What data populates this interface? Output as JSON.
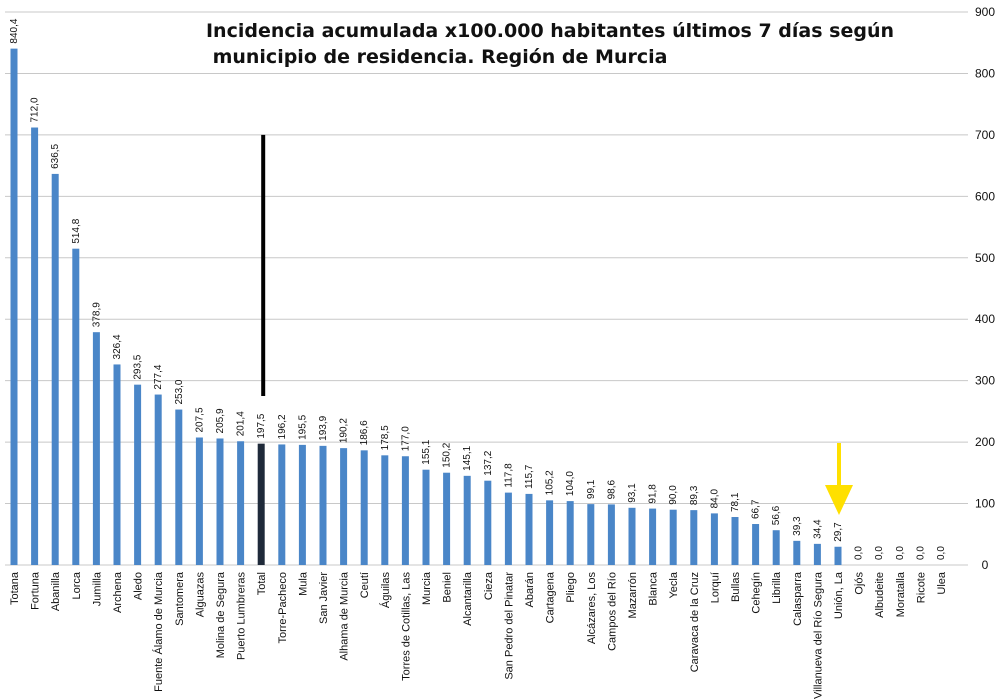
{
  "chart_data": {
    "type": "bar",
    "title_line1": "Incidencia acumulada x100.000 habitantes últimos 7 días según",
    "title_line2": "municipio  de residencia. Región de Murcia",
    "categories": [
      "Totana",
      "Fortuna",
      "Abanilla",
      "Lorca",
      "Jumilla",
      "Archena",
      "Aledo",
      "Fuente Álamo de Murcia",
      "Santomera",
      "Alguazas",
      "Molina de Segura",
      "Puerto Lumbreras",
      "Total",
      "Torre-Pacheco",
      "Mula",
      "San Javier",
      "Alhama de Murcia",
      "Ceutí",
      "Águilas",
      "Torres de Cotillas, Las",
      "Murcia",
      "Beniel",
      "Alcantarilla",
      "Cieza",
      "San Pedro del Pinatar",
      "Abarán",
      "Cartagena",
      "Pliego",
      "Alcázares, Los",
      "Campos del Río",
      "Mazarrón",
      "Blanca",
      "Yecla",
      "Caravaca de la Cruz",
      "Lorquí",
      "Bullas",
      "Cehegín",
      "Librilla",
      "Calasparra",
      "Villanueva del Río Segura",
      "Unión, La",
      "Ojós",
      "Albudeite",
      "Moratalla",
      "Ricote",
      "Ulea"
    ],
    "values": [
      840.4,
      712.0,
      636.5,
      514.8,
      378.9,
      326.4,
      293.5,
      277.4,
      253.0,
      207.5,
      205.9,
      201.4,
      197.5,
      196.2,
      195.5,
      193.9,
      190.2,
      186.6,
      178.5,
      177.0,
      155.1,
      150.2,
      145.1,
      137.2,
      117.8,
      115.7,
      105.2,
      104.0,
      99.1,
      98.6,
      93.1,
      91.8,
      90.0,
      89.3,
      84.0,
      78.1,
      66.7,
      56.6,
      39.3,
      34.4,
      29.7,
      0.0,
      0.0,
      0.0,
      0.0,
      0.0
    ],
    "value_labels": [
      "840,4",
      "712,0",
      "636,5",
      "514,8",
      "378,9",
      "326,4",
      "293,5",
      "277,4",
      "253,0",
      "207,5",
      "205,9",
      "201,4",
      "197,5",
      "196,2",
      "195,5",
      "193,9",
      "190,2",
      "186,6",
      "178,5",
      "177,0",
      "155,1",
      "150,2",
      "145,1",
      "137,2",
      "117,8",
      "115,7",
      "105,2",
      "104,0",
      "99,1",
      "98,6",
      "93,1",
      "91,8",
      "90,0",
      "89,3",
      "84,0",
      "78,1",
      "66,7",
      "56,6",
      "39,3",
      "34,4",
      "29,7",
      "0,0",
      "0,0",
      "0,0",
      "0,0",
      "0,0"
    ],
    "y_ticks": [
      "0",
      "100",
      "200",
      "300",
      "400",
      "500",
      "600",
      "700",
      "800",
      "900"
    ],
    "ylim": [
      0,
      900
    ],
    "y_axis_side": "right",
    "grid": true,
    "highlight_category": "Total",
    "arrow_category": "Unión, La",
    "reference_line_range": [
      275,
      700
    ],
    "colors": {
      "bar": "#4a86c8",
      "highlight_bar": "#1f2a3a",
      "arrow": "#ffe000",
      "grid": "#c8c8c8",
      "reference_line": "#000000",
      "text": "#111111"
    }
  }
}
